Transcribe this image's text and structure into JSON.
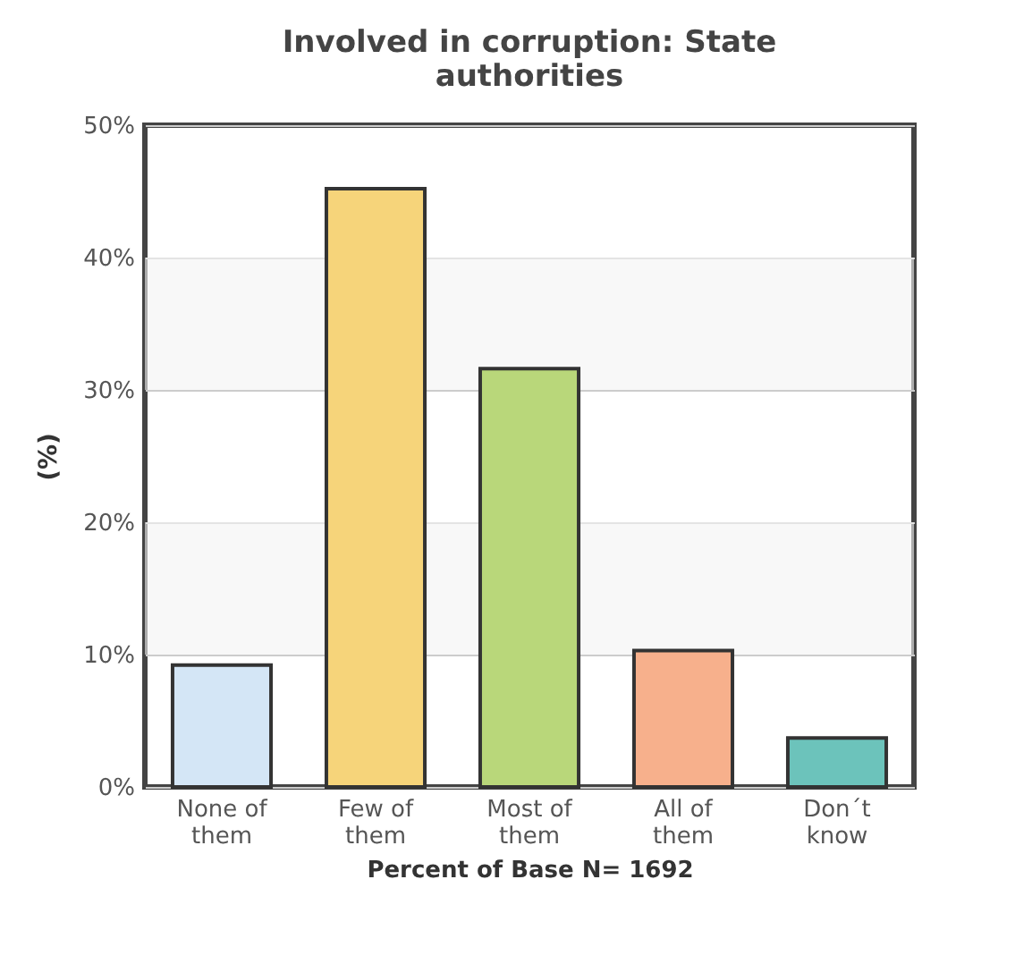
{
  "chart_data": {
    "type": "bar",
    "title": "Involved in corruption: State authorities",
    "xlabel": "Percent of Base N= 1692",
    "ylabel": "(%)",
    "categories": [
      "None of them",
      "Few of them",
      "Most of them",
      "All of them",
      "Don´t know"
    ],
    "values": [
      9.2,
      45.2,
      31.6,
      10.3,
      3.7
    ],
    "colors": [
      "#d4e6f6",
      "#f6d47a",
      "#b9d77a",
      "#f7b08c",
      "#6cc3bb"
    ],
    "ylim": [
      0,
      50
    ],
    "yticks": [
      {
        "value": 0,
        "label": "0%"
      },
      {
        "value": 10,
        "label": "10%"
      },
      {
        "value": 20,
        "label": "20%"
      },
      {
        "value": 30,
        "label": "30%"
      },
      {
        "value": 40,
        "label": "40%"
      },
      {
        "value": 50,
        "label": "50%"
      }
    ],
    "bands": [
      {
        "axis": "y",
        "from": 10,
        "to": 20,
        "color": "#f3f3f3"
      },
      {
        "axis": "y",
        "from": 30,
        "to": 40,
        "color": "#f3f3f3"
      }
    ],
    "grid": "y",
    "legend": false
  }
}
